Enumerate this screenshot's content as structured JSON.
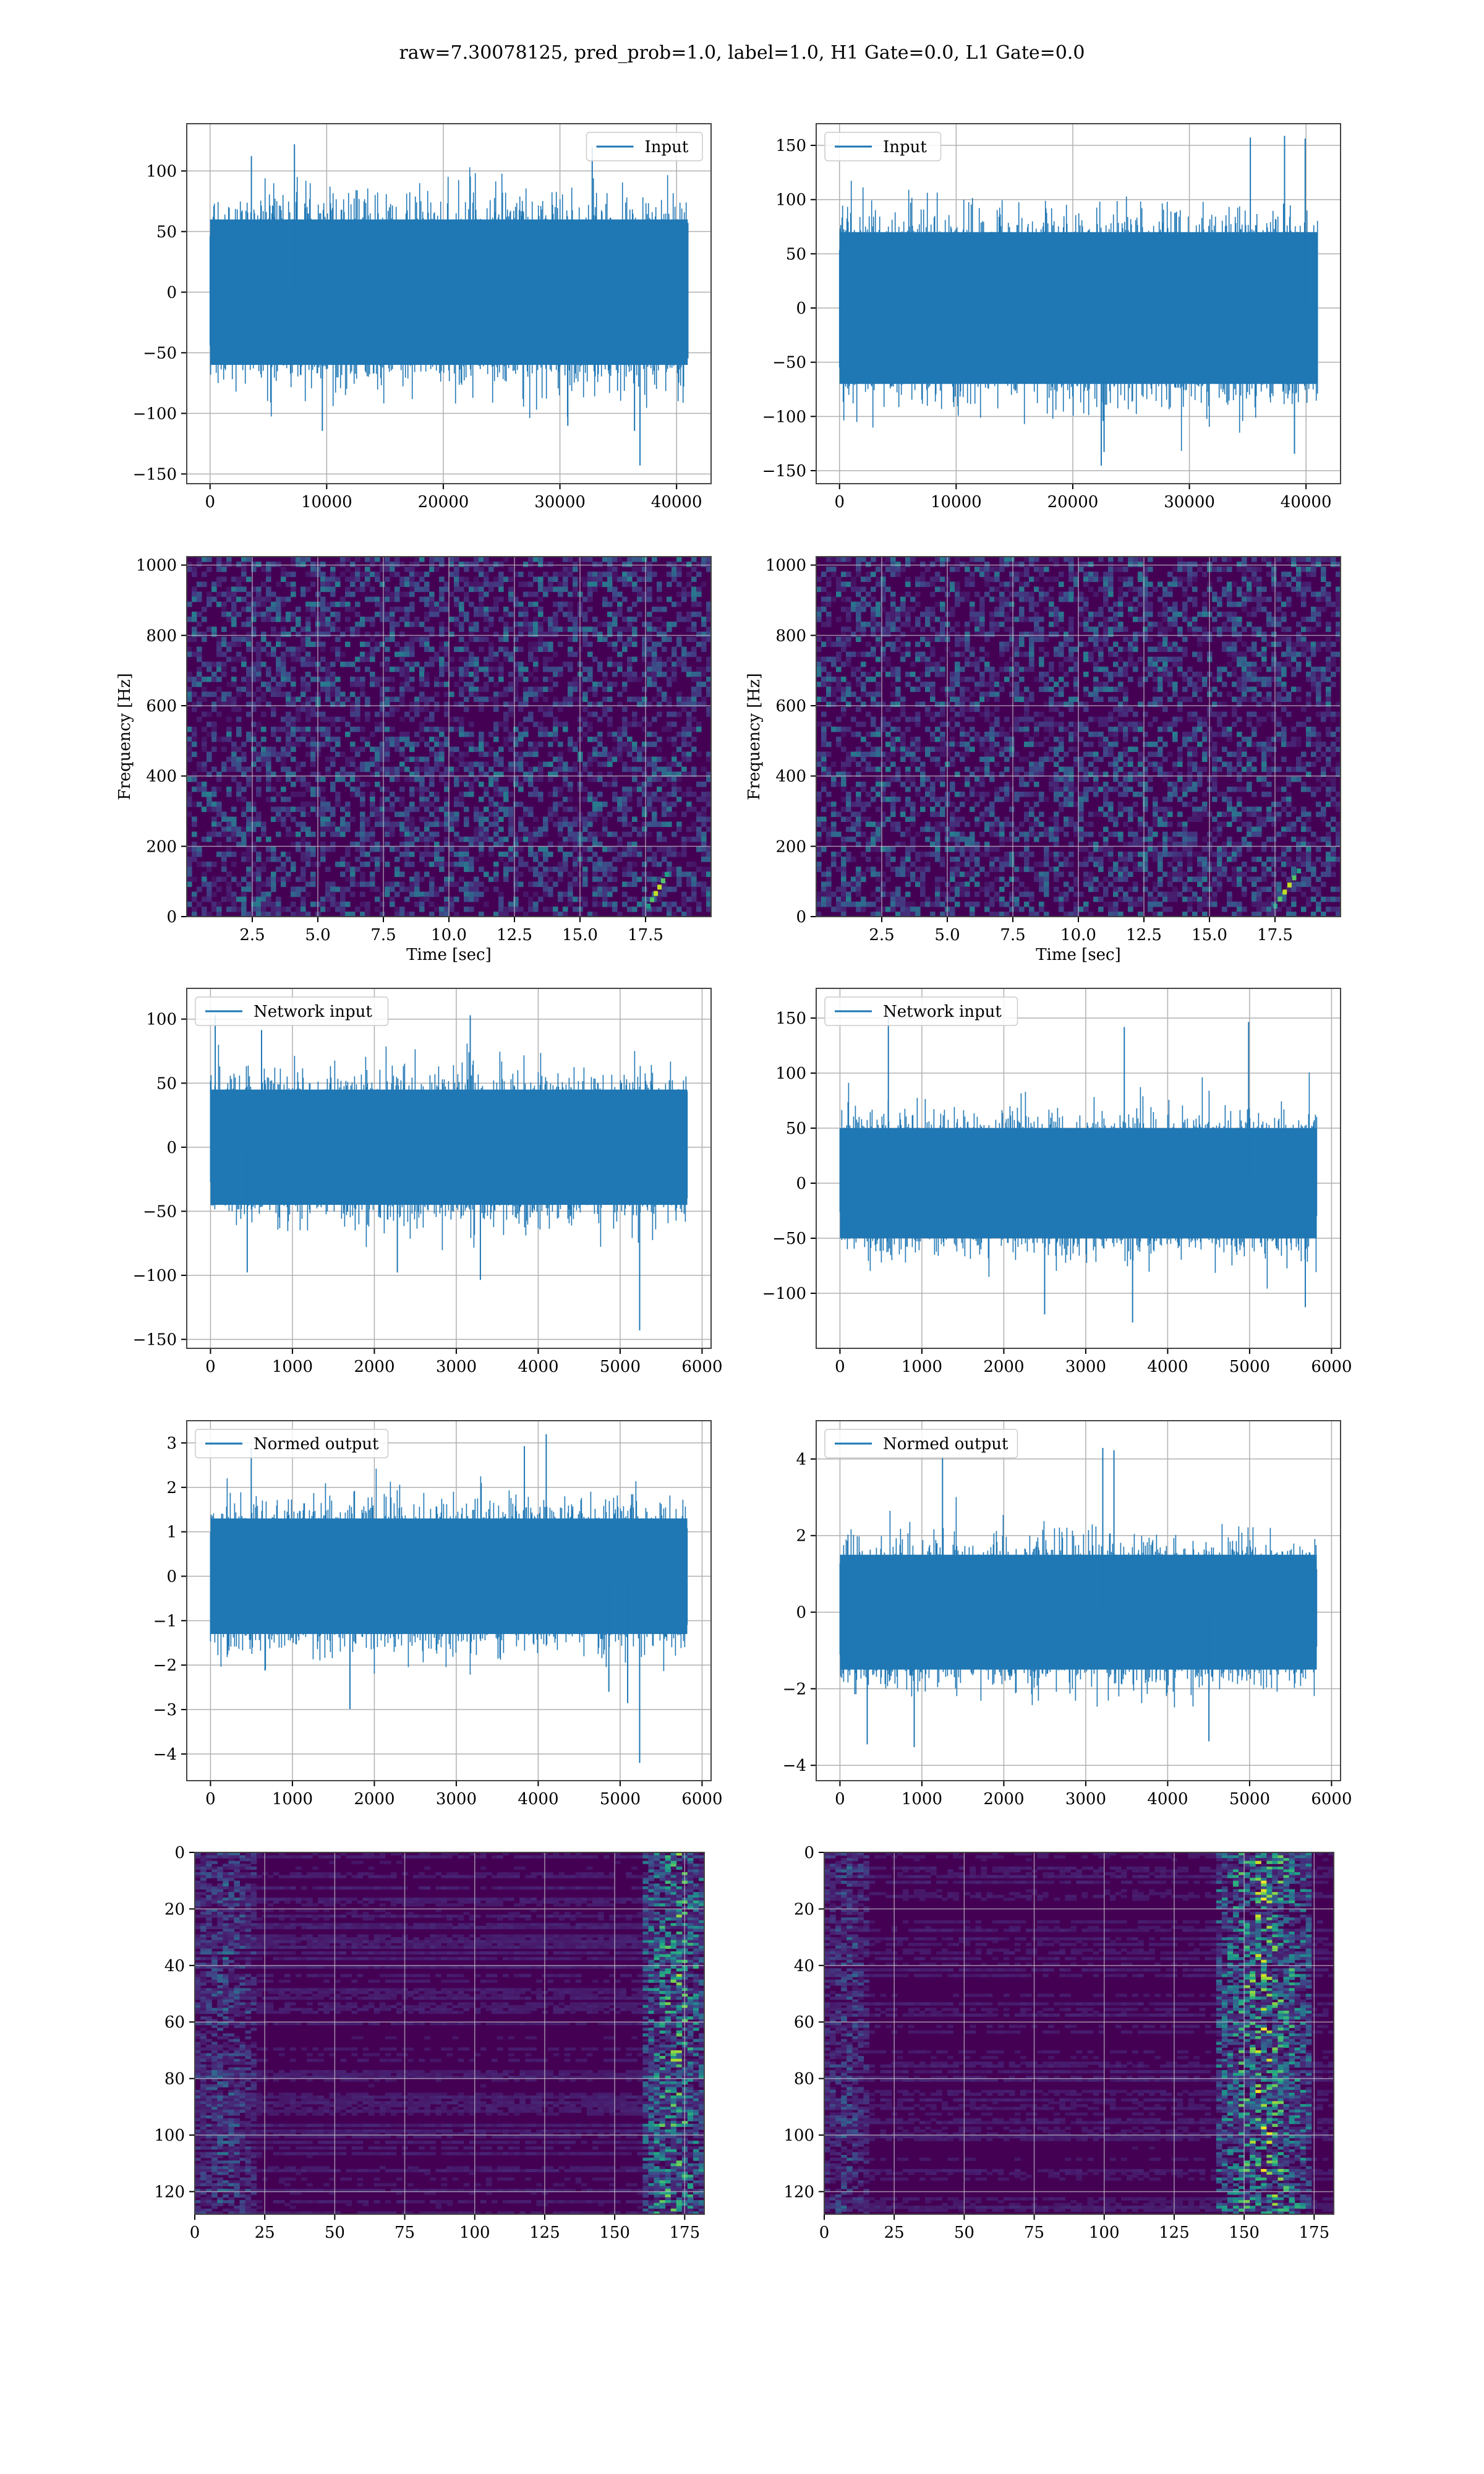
{
  "figure": {
    "suptitle": "raw=7.30078125, pred_prob=1.0, label=1.0, H1 Gate=0.0, L1 Gate=0.0",
    "line_color": "#1f77b4",
    "heatmap_colormap": "viridis",
    "background_color": "#440154"
  },
  "chart_data": [
    {
      "id": "input_left",
      "type": "line",
      "title": "",
      "xlabel": "",
      "ylabel": "",
      "legend": "Input",
      "legend_loc": "upper right",
      "xlim": [
        -2000,
        42960
      ],
      "ylim": [
        -158,
        139
      ],
      "xticks": [
        0,
        10000,
        20000,
        30000,
        40000
      ],
      "xtick_labels": [
        "0",
        "10000",
        "20000",
        "30000",
        "40000"
      ],
      "yticks": [
        -150,
        -100,
        -50,
        0,
        50,
        100
      ],
      "ytick_labels": [
        "−150",
        "−100",
        "−50",
        "0",
        "50",
        "100"
      ],
      "grid": true,
      "series": [
        {
          "name": "Input",
          "n_samples": 40960,
          "x_range": [
            0,
            40960
          ],
          "envelope": [
            -115,
            125
          ],
          "typical_band": [
            -60,
            60
          ],
          "min_spike": -143
        }
      ]
    },
    {
      "id": "input_right",
      "type": "line",
      "title": "",
      "xlabel": "",
      "ylabel": "",
      "legend": "Input",
      "legend_loc": "upper left",
      "xlim": [
        -2000,
        42960
      ],
      "ylim": [
        -162,
        170
      ],
      "xticks": [
        0,
        10000,
        20000,
        30000,
        40000
      ],
      "xtick_labels": [
        "0",
        "10000",
        "20000",
        "30000",
        "40000"
      ],
      "yticks": [
        -150,
        -100,
        -50,
        0,
        50,
        100,
        150
      ],
      "ytick_labels": [
        "−150",
        "−100",
        "−50",
        "0",
        "50",
        "100",
        "150"
      ],
      "grid": true,
      "series": [
        {
          "name": "Input",
          "n_samples": 40960,
          "x_range": [
            0,
            40960
          ],
          "envelope": [
            -148,
            160
          ],
          "typical_band": [
            -70,
            70
          ]
        }
      ]
    },
    {
      "id": "spec_left",
      "type": "heatmap",
      "title": "",
      "xlabel": "Time [sec]",
      "ylabel": "Frequency [Hz]",
      "xlim": [
        0,
        20
      ],
      "ylim": [
        0,
        1024
      ],
      "xticks": [
        2.5,
        5.0,
        7.5,
        10.0,
        12.5,
        15.0,
        17.5
      ],
      "xtick_labels": [
        "2.5",
        "5.0",
        "7.5",
        "10.0",
        "12.5",
        "15.0",
        "17.5"
      ],
      "yticks": [
        0,
        200,
        400,
        600,
        800,
        1000
      ],
      "ytick_labels": [
        "0",
        "200",
        "400",
        "600",
        "800",
        "1000"
      ],
      "grid": true,
      "colormap": "viridis",
      "features": [
        {
          "kind": "chirp",
          "time_range": [
            17.6,
            18.3
          ],
          "freq_range": [
            30,
            120
          ]
        }
      ]
    },
    {
      "id": "spec_right",
      "type": "heatmap",
      "title": "",
      "xlabel": "Time [sec]",
      "ylabel": "Frequency [Hz]",
      "xlim": [
        0,
        20
      ],
      "ylim": [
        0,
        1024
      ],
      "xticks": [
        2.5,
        5.0,
        7.5,
        10.0,
        12.5,
        15.0,
        17.5
      ],
      "xtick_labels": [
        "2.5",
        "5.0",
        "7.5",
        "10.0",
        "12.5",
        "15.0",
        "17.5"
      ],
      "yticks": [
        0,
        200,
        400,
        600,
        800,
        1000
      ],
      "ytick_labels": [
        "0",
        "200",
        "400",
        "600",
        "800",
        "1000"
      ],
      "grid": true,
      "colormap": "viridis",
      "features": [
        {
          "kind": "chirp",
          "time_range": [
            17.5,
            18.4
          ],
          "freq_range": [
            30,
            130
          ]
        }
      ]
    },
    {
      "id": "net_left",
      "type": "line",
      "title": "",
      "xlabel": "",
      "ylabel": "",
      "legend": "Network input",
      "legend_loc": "upper left",
      "xlim": [
        -290,
        6110
      ],
      "ylim": [
        -157,
        124
      ],
      "xticks": [
        0,
        1000,
        2000,
        3000,
        4000,
        5000,
        6000
      ],
      "xtick_labels": [
        "0",
        "1000",
        "2000",
        "3000",
        "4000",
        "5000",
        "6000"
      ],
      "yticks": [
        -150,
        -100,
        -50,
        0,
        50,
        100
      ],
      "ytick_labels": [
        "−150",
        "−100",
        "−50",
        "0",
        "50",
        "100"
      ],
      "grid": true,
      "series": [
        {
          "name": "Network input",
          "n_samples": 5820,
          "x_range": [
            0,
            5820
          ],
          "envelope": [
            -105,
            105
          ],
          "typical_band": [
            -45,
            45
          ],
          "min_spike": -143
        }
      ]
    },
    {
      "id": "net_right",
      "type": "line",
      "title": "",
      "xlabel": "",
      "ylabel": "",
      "legend": "Network input",
      "legend_loc": "upper left",
      "xlim": [
        -290,
        6110
      ],
      "ylim": [
        -150,
        177
      ],
      "xticks": [
        0,
        1000,
        2000,
        3000,
        4000,
        5000,
        6000
      ],
      "xtick_labels": [
        "0",
        "1000",
        "2000",
        "3000",
        "4000",
        "5000",
        "6000"
      ],
      "yticks": [
        -100,
        -50,
        0,
        50,
        100,
        150
      ],
      "ytick_labels": [
        "−100",
        "−50",
        "0",
        "50",
        "100",
        "150"
      ],
      "grid": true,
      "series": [
        {
          "name": "Network input",
          "n_samples": 5820,
          "x_range": [
            0,
            5820
          ],
          "envelope": [
            -130,
            160
          ],
          "typical_band": [
            -50,
            50
          ]
        }
      ]
    },
    {
      "id": "norm_left",
      "type": "line",
      "title": "",
      "xlabel": "",
      "ylabel": "",
      "legend": "Normed output",
      "legend_loc": "upper left",
      "xlim": [
        -290,
        6110
      ],
      "ylim": [
        -4.6,
        3.5
      ],
      "xticks": [
        0,
        1000,
        2000,
        3000,
        4000,
        5000,
        6000
      ],
      "xtick_labels": [
        "0",
        "1000",
        "2000",
        "3000",
        "4000",
        "5000",
        "6000"
      ],
      "yticks": [
        -4,
        -3,
        -2,
        -1,
        0,
        1,
        2,
        3
      ],
      "ytick_labels": [
        "−4",
        "−3",
        "−2",
        "−1",
        "0",
        "1",
        "2",
        "3"
      ],
      "grid": true,
      "series": [
        {
          "name": "Normed output",
          "n_samples": 5820,
          "x_range": [
            0,
            5820
          ],
          "envelope": [
            -3.0,
            3.2
          ],
          "typical_band": [
            -1.3,
            1.3
          ],
          "min_spike": -4.2
        }
      ]
    },
    {
      "id": "norm_right",
      "type": "line",
      "title": "",
      "xlabel": "",
      "ylabel": "",
      "legend": "Normed output",
      "legend_loc": "upper left",
      "xlim": [
        -290,
        6110
      ],
      "ylim": [
        -4.4,
        5.0
      ],
      "xticks": [
        0,
        1000,
        2000,
        3000,
        4000,
        5000,
        6000
      ],
      "xtick_labels": [
        "0",
        "1000",
        "2000",
        "3000",
        "4000",
        "5000",
        "6000"
      ],
      "yticks": [
        -4,
        -2,
        0,
        2,
        4
      ],
      "ytick_labels": [
        "−4",
        "−2",
        "0",
        "2",
        "4"
      ],
      "grid": true,
      "series": [
        {
          "name": "Normed output",
          "n_samples": 5820,
          "x_range": [
            0,
            5820
          ],
          "envelope": [
            -3.8,
            4.6
          ],
          "typical_band": [
            -1.5,
            1.5
          ]
        }
      ]
    },
    {
      "id": "feat_left",
      "type": "heatmap",
      "title": "",
      "xlabel": "",
      "ylabel": "",
      "xlim": [
        0,
        182
      ],
      "ylim": [
        128,
        0
      ],
      "xticks": [
        0,
        25,
        50,
        75,
        100,
        125,
        150,
        175
      ],
      "xtick_labels": [
        "0",
        "25",
        "50",
        "75",
        "100",
        "125",
        "150",
        "175"
      ],
      "yticks": [
        0,
        20,
        40,
        60,
        80,
        100,
        120
      ],
      "ytick_labels": [
        "0",
        "20",
        "40",
        "60",
        "80",
        "100",
        "120"
      ],
      "grid": true,
      "colormap": "viridis",
      "n_rows": 128,
      "n_cols": 182,
      "features": [
        {
          "kind": "activation_band",
          "col_range": [
            160,
            182
          ],
          "strength": 0.9
        },
        {
          "kind": "activation_band",
          "col_range": [
            0,
            20
          ],
          "strength": 0.35
        }
      ]
    },
    {
      "id": "feat_right",
      "type": "heatmap",
      "title": "",
      "xlabel": "",
      "ylabel": "",
      "xlim": [
        0,
        182
      ],
      "ylim": [
        128,
        0
      ],
      "xticks": [
        0,
        25,
        50,
        75,
        100,
        125,
        150,
        175
      ],
      "xtick_labels": [
        "0",
        "25",
        "50",
        "75",
        "100",
        "125",
        "150",
        "175"
      ],
      "yticks": [
        0,
        20,
        40,
        60,
        80,
        100,
        120
      ],
      "ytick_labels": [
        "0",
        "20",
        "40",
        "60",
        "80",
        "100",
        "120"
      ],
      "grid": true,
      "colormap": "viridis",
      "n_rows": 128,
      "n_cols": 182,
      "features": [
        {
          "kind": "activation_band",
          "col_range": [
            140,
            172
          ],
          "strength": 1.0
        },
        {
          "kind": "activation_band",
          "col_range": [
            0,
            15
          ],
          "strength": 0.3
        }
      ]
    }
  ]
}
